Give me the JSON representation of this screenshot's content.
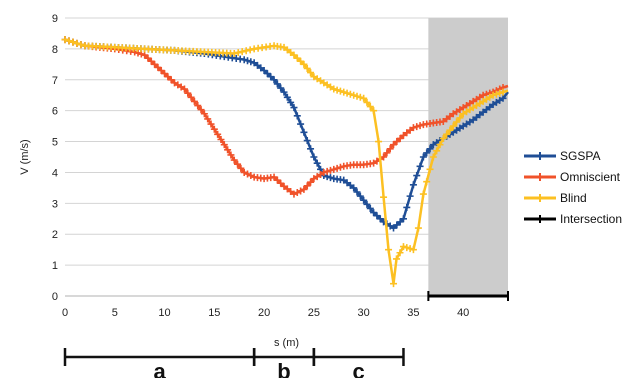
{
  "chart_data": {
    "type": "line",
    "xlabel": "s (m)",
    "ylabel": "V (m/s)",
    "xlim": [
      0,
      44.5
    ],
    "ylim": [
      0,
      9
    ],
    "x_ticks": [
      0,
      5,
      10,
      15,
      20,
      25,
      30,
      35,
      40
    ],
    "y_ticks": [
      0,
      1,
      2,
      3,
      4,
      5,
      6,
      7,
      8,
      9
    ],
    "grid": "horizontal",
    "legend_position": "right",
    "shaded_region": {
      "x_start": 36.5,
      "x_end": 44.5,
      "color": "#cccccc"
    },
    "series": [
      {
        "name": "SGSPA",
        "color": "#1f4e96",
        "points": [
          [
            0,
            8.3
          ],
          [
            2,
            8.1
          ],
          [
            5,
            8.05
          ],
          [
            8,
            8.0
          ],
          [
            11,
            7.95
          ],
          [
            14,
            7.85
          ],
          [
            16,
            7.75
          ],
          [
            18,
            7.65
          ],
          [
            19,
            7.55
          ],
          [
            20,
            7.3
          ],
          [
            21,
            7.0
          ],
          [
            22,
            6.6
          ],
          [
            23,
            6.1
          ],
          [
            24,
            5.3
          ],
          [
            25,
            4.5
          ],
          [
            26,
            3.9
          ],
          [
            27,
            3.8
          ],
          [
            28,
            3.75
          ],
          [
            29,
            3.5
          ],
          [
            30,
            3.1
          ],
          [
            31,
            2.7
          ],
          [
            32,
            2.4
          ],
          [
            33,
            2.2
          ],
          [
            34,
            2.5
          ],
          [
            35,
            3.6
          ],
          [
            36,
            4.5
          ],
          [
            37,
            4.9
          ],
          [
            38,
            5.1
          ],
          [
            39,
            5.3
          ],
          [
            40,
            5.5
          ],
          [
            41,
            5.7
          ],
          [
            42,
            5.95
          ],
          [
            43,
            6.2
          ],
          [
            44,
            6.4
          ],
          [
            44.5,
            6.6
          ]
        ]
      },
      {
        "name": "Omniscient",
        "color": "#f0522a",
        "points": [
          [
            0,
            8.3
          ],
          [
            2,
            8.1
          ],
          [
            5,
            8.0
          ],
          [
            7,
            7.9
          ],
          [
            8,
            7.8
          ],
          [
            9,
            7.5
          ],
          [
            10,
            7.2
          ],
          [
            11,
            6.9
          ],
          [
            12,
            6.7
          ],
          [
            13,
            6.3
          ],
          [
            14,
            5.9
          ],
          [
            15,
            5.4
          ],
          [
            16,
            4.9
          ],
          [
            17,
            4.4
          ],
          [
            18,
            4.0
          ],
          [
            19,
            3.85
          ],
          [
            20,
            3.8
          ],
          [
            21,
            3.85
          ],
          [
            22,
            3.55
          ],
          [
            23,
            3.3
          ],
          [
            24,
            3.45
          ],
          [
            25,
            3.8
          ],
          [
            26,
            4.0
          ],
          [
            27,
            4.1
          ],
          [
            28,
            4.2
          ],
          [
            29,
            4.25
          ],
          [
            30,
            4.25
          ],
          [
            31,
            4.3
          ],
          [
            32,
            4.5
          ],
          [
            33,
            4.9
          ],
          [
            34,
            5.2
          ],
          [
            35,
            5.45
          ],
          [
            36,
            5.55
          ],
          [
            37,
            5.6
          ],
          [
            38,
            5.65
          ],
          [
            39,
            5.9
          ],
          [
            40,
            6.1
          ],
          [
            41,
            6.3
          ],
          [
            42,
            6.5
          ],
          [
            43,
            6.6
          ],
          [
            44,
            6.75
          ],
          [
            44.5,
            6.8
          ]
        ]
      },
      {
        "name": "Blind",
        "color": "#fcc022",
        "points": [
          [
            0,
            8.3
          ],
          [
            2,
            8.1
          ],
          [
            5,
            8.05
          ],
          [
            8,
            8.0
          ],
          [
            11,
            7.95
          ],
          [
            14,
            7.9
          ],
          [
            17,
            7.85
          ],
          [
            19,
            8.0
          ],
          [
            21,
            8.1
          ],
          [
            22,
            8.05
          ],
          [
            23,
            7.8
          ],
          [
            24,
            7.5
          ],
          [
            25,
            7.1
          ],
          [
            26,
            6.9
          ],
          [
            27,
            6.7
          ],
          [
            28,
            6.6
          ],
          [
            29,
            6.5
          ],
          [
            30,
            6.4
          ],
          [
            31,
            6.0
          ],
          [
            31.5,
            5.0
          ],
          [
            32,
            3.2
          ],
          [
            32.5,
            1.5
          ],
          [
            33,
            0.4
          ],
          [
            33.3,
            1.2
          ],
          [
            34,
            1.6
          ],
          [
            35,
            1.5
          ],
          [
            35.5,
            2.2
          ],
          [
            36,
            3.3
          ],
          [
            37,
            4.5
          ],
          [
            38,
            5.1
          ],
          [
            39,
            5.5
          ],
          [
            40,
            5.9
          ],
          [
            41,
            6.1
          ],
          [
            42,
            6.3
          ],
          [
            43,
            6.5
          ],
          [
            44,
            6.6
          ],
          [
            44.5,
            6.65
          ]
        ]
      },
      {
        "name": "Intersection",
        "color": "#000000",
        "points": [
          [
            36.5,
            0
          ],
          [
            44.5,
            0
          ]
        ]
      }
    ],
    "segments": [
      {
        "label": "a",
        "x_start": 0,
        "x_end": 19
      },
      {
        "label": "b",
        "x_start": 19,
        "x_end": 25
      },
      {
        "label": "c",
        "x_start": 25,
        "x_end": 34
      }
    ]
  }
}
